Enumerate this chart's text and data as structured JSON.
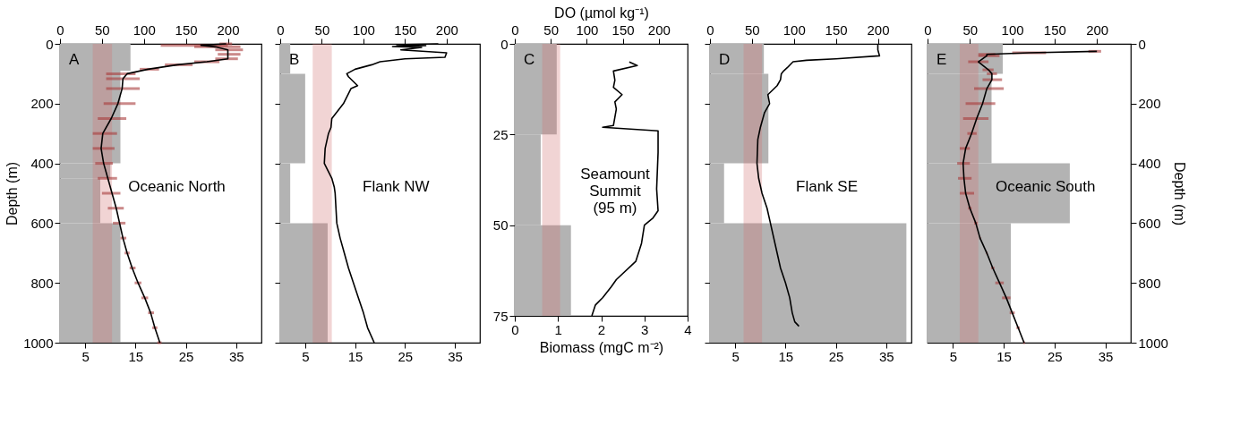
{
  "chart_data": [
    {
      "type": "histogram",
      "orientation": "horizontal",
      "ylabel": "Depth (m)",
      "annotations": [
        "A",
        "Oceanic North"
      ],
      "xlim": [
        0,
        40
      ],
      "xticks": [
        5,
        15,
        25,
        35
      ],
      "x2lim": [
        0,
        240
      ],
      "x2ticks": [
        0,
        50,
        100,
        150,
        200
      ],
      "ylim": [
        1000,
        0
      ],
      "yticks": [
        0,
        200,
        400,
        600,
        800,
        1000
      ],
      "bands": [
        {
          "axis": "x2",
          "from": 39,
          "to": 62,
          "color": "#d07070"
        }
      ],
      "series": [
        {
          "bins": [
            0,
            90,
            400,
            450,
            600,
            1000
          ],
          "values": [
            14,
            12,
            10,
            8,
            12
          ],
          "color": "#b3b3b3"
        },
        {
          "type": "line",
          "axis": "x2",
          "color": "#000000",
          "x": [
            0,
            5,
            10,
            20,
            35,
            50,
            60,
            70,
            85,
            100,
            117,
            150,
            200,
            250,
            300,
            350,
            400,
            450,
            500,
            550,
            600,
            650,
            700,
            750,
            800,
            850,
            900,
            950,
            1000
          ],
          "values": [
            198,
            168,
            185,
            200,
            200,
            200,
            175,
            140,
            105,
            80,
            75,
            74,
            69,
            61,
            51,
            49,
            52,
            57,
            62,
            67,
            71,
            75,
            80,
            86,
            93,
            101,
            108,
            113,
            119
          ],
          "errors": [
            [
              190,
              205
            ],
            [
              120,
              200
            ],
            [
              160,
              215
            ],
            [
              185,
              218
            ],
            [
              188,
              215
            ],
            [
              185,
              212
            ],
            [
              160,
              190
            ],
            [
              125,
              158
            ],
            [
              95,
              118
            ],
            [
              55,
              90
            ],
            [
              55,
              95
            ],
            [
              55,
              95
            ],
            [
              52,
              90
            ],
            [
              45,
              79
            ],
            [
              39,
              68
            ],
            [
              39,
              65
            ],
            [
              42,
              63
            ],
            [
              45,
              68
            ],
            [
              50,
              72
            ],
            [
              57,
              76
            ],
            [
              63,
              78
            ],
            [
              72,
              79
            ],
            [
              77,
              83
            ],
            [
              83,
              90
            ],
            [
              89,
              97
            ],
            [
              97,
              105
            ],
            [
              105,
              112
            ],
            [
              110,
              116
            ],
            [
              116,
              121
            ]
          ]
        }
      ]
    },
    {
      "type": "histogram",
      "orientation": "horizontal",
      "annotations": [
        "B",
        "Flank NW"
      ],
      "tick_labels": "x",
      "xlim": [
        0,
        40
      ],
      "xticks": [
        5,
        15,
        25,
        35
      ],
      "x2lim": [
        0,
        240
      ],
      "x2ticks": [
        0,
        50,
        100,
        150,
        200
      ],
      "ylim": [
        1000,
        0
      ],
      "yticks": [
        0,
        200,
        400,
        600,
        800,
        1000
      ],
      "bands": [
        {
          "axis": "x2",
          "from": 39,
          "to": 62,
          "color": "#d07070"
        }
      ],
      "series": [
        {
          "bins": [
            0,
            100,
            400,
            600,
            1000
          ],
          "values": [
            2,
            5,
            2,
            9.5
          ],
          "color": "#b3b3b3"
        },
        {
          "type": "line",
          "axis": "x2",
          "color": "#000000",
          "x": [
            0,
            3,
            6,
            9,
            12,
            20,
            30,
            45,
            50,
            60,
            70,
            85,
            100,
            110,
            140,
            150,
            200,
            250,
            280,
            300,
            350,
            400,
            450,
            480,
            500,
            550,
            600,
            650,
            700,
            750,
            800,
            850,
            900,
            950,
            1000
          ],
          "values": [
            190,
            140,
            175,
            135,
            170,
            145,
            200,
            198,
            150,
            120,
            110,
            90,
            80,
            82,
            93,
            85,
            76,
            62,
            61,
            58,
            54,
            53,
            62,
            65,
            66,
            67,
            68,
            72,
            77,
            82,
            88,
            94,
            100,
            105,
            113
          ]
        }
      ]
    },
    {
      "type": "histogram",
      "orientation": "horizontal",
      "xlabel": "Biomass (mgC m⁻²)",
      "x2label": "DO (µmol kg⁻¹)",
      "annotations": [
        "C",
        "Seamount\nSummit\n(95 m)"
      ],
      "xlim": [
        0,
        4
      ],
      "xticks": [
        0,
        1,
        2,
        3,
        4
      ],
      "x2lim": [
        0,
        240
      ],
      "x2ticks": [
        0,
        50,
        100,
        150,
        200
      ],
      "ylim": [
        75,
        0
      ],
      "yticks": [
        0,
        25,
        50,
        75
      ],
      "bands": [
        {
          "axis": "x2",
          "from": 38,
          "to": 63,
          "color": "#d07070"
        }
      ],
      "series": [
        {
          "bins": [
            0,
            25,
            50,
            75
          ],
          "values": [
            0.97,
            0.6,
            1.3
          ],
          "color": "#b3b3b3"
        },
        {
          "type": "line",
          "axis": "x2",
          "color": "#000000",
          "x": [
            5,
            6,
            7.5,
            10,
            12,
            14,
            16,
            18,
            22.5,
            23,
            24,
            30,
            40,
            46,
            48,
            50,
            55,
            60,
            65,
            67,
            70,
            72,
            75
          ],
          "values": [
            159,
            170,
            137,
            139,
            137,
            149,
            139,
            141,
            137,
            122,
            199,
            199,
            197,
            199,
            192,
            180,
            176,
            168,
            141,
            134,
            122,
            112,
            107
          ]
        }
      ]
    },
    {
      "type": "histogram",
      "orientation": "horizontal",
      "annotations": [
        "D",
        "Flank SE"
      ],
      "tick_labels": "x",
      "xlim": [
        0,
        40
      ],
      "xticks": [
        5,
        15,
        25,
        35
      ],
      "x2lim": [
        0,
        240
      ],
      "x2ticks": [
        0,
        50,
        100,
        150,
        200
      ],
      "ylim": [
        1000,
        0
      ],
      "yticks": [
        0,
        200,
        400,
        600,
        800,
        1000
      ],
      "bands": [
        {
          "axis": "x2",
          "from": 40,
          "to": 62,
          "color": "#d07070"
        }
      ],
      "series": [
        {
          "bins": [
            0,
            100,
            400,
            600,
            1000
          ],
          "values": [
            10.7,
            11.6,
            2.8,
            39
          ],
          "color": "#b3b3b3"
        },
        {
          "type": "line",
          "axis": "x2",
          "color": "#000000",
          "x": [
            0,
            20,
            40,
            50,
            55,
            60,
            80,
            90,
            100,
            120,
            140,
            170,
            200,
            230,
            280,
            320,
            400,
            450,
            500,
            550,
            600,
            700,
            750,
            800,
            850,
            900,
            930,
            945
          ],
          "values": [
            200,
            200,
            202,
            150,
            115,
            99,
            92,
            88,
            85,
            84,
            80,
            69,
            71,
            65,
            60,
            57,
            56,
            58,
            62,
            68,
            72,
            80,
            84,
            90,
            95,
            98,
            101,
            106
          ]
        }
      ]
    },
    {
      "type": "histogram",
      "orientation": "horizontal",
      "ylabel": "Depth (m)",
      "annotations": [
        "E",
        "Oceanic South"
      ],
      "xlim": [
        0,
        40
      ],
      "xticks": [
        5,
        15,
        25,
        35
      ],
      "x2lim": [
        0,
        240
      ],
      "x2ticks": [
        0,
        50,
        100,
        150,
        200
      ],
      "ylim": [
        1000,
        0
      ],
      "yticks": [
        0,
        200,
        400,
        600,
        800,
        1000
      ],
      "bands": [
        {
          "axis": "x2",
          "from": 38,
          "to": 60,
          "color": "#d07070"
        }
      ],
      "series": [
        {
          "bins": [
            0,
            100,
            400,
            600,
            1000
          ],
          "values": [
            14.8,
            12.6,
            28,
            16.4
          ],
          "color": "#b3b3b3"
        },
        {
          "type": "line",
          "axis": "x2",
          "color": "#000000",
          "x": [
            25,
            30,
            35,
            40,
            60,
            87,
            100,
            120,
            150,
            200,
            250,
            300,
            350,
            400,
            450,
            500,
            550,
            600,
            650,
            700,
            750,
            800,
            850,
            900,
            950,
            1000
          ],
          "values": [
            200,
            120,
            70,
            70,
            60,
            72,
            76,
            76,
            70,
            65,
            58,
            52,
            45,
            42,
            43,
            45,
            50,
            57,
            62,
            70,
            77,
            85,
            93,
            100,
            107,
            114
          ],
          "errors": [
            [
              190,
              205
            ],
            [
              100,
              140
            ],
            [
              60,
              80
            ],
            [
              60,
              85
            ],
            [
              48,
              72
            ],
            [
              65,
              78
            ],
            [
              70,
              82
            ],
            [
              65,
              88
            ],
            [
              55,
              90
            ],
            [
              45,
              80
            ],
            [
              42,
              72
            ],
            [
              47,
              58
            ],
            [
              38,
              50
            ],
            [
              35,
              50
            ],
            [
              36,
              52
            ],
            [
              38,
              55
            ],
            [
              48,
              52
            ],
            [
              55,
              59
            ],
            [
              61,
              63
            ],
            [
              69,
              71
            ],
            [
              75,
              79
            ],
            [
              80,
              90
            ],
            [
              88,
              98
            ],
            [
              97,
              103
            ],
            [
              105,
              109
            ],
            [
              113,
              115
            ]
          ]
        }
      ]
    }
  ]
}
